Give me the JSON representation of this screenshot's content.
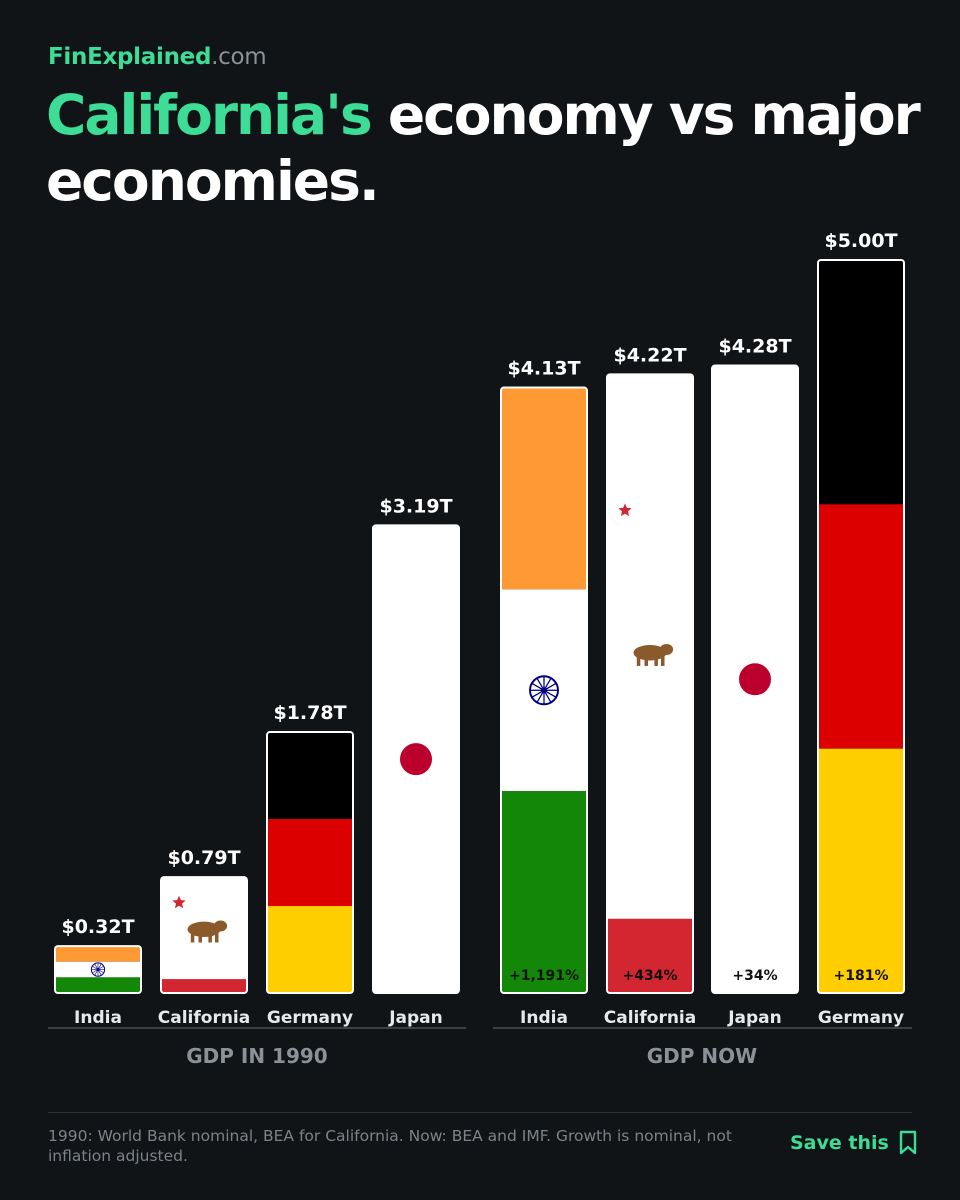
{
  "brand": {
    "name": "FinExplained",
    "domain": ".com"
  },
  "title": {
    "highlight": "California's",
    "rest": " economy vs major economies."
  },
  "footer": {
    "note": "1990: World Bank nominal, BEA for California. Now: BEA and IMF. Growth is nominal, not inflation adjusted.",
    "save_label": "Save this"
  },
  "chart_data": [
    {
      "type": "bar",
      "group_label": "GDP IN 1990",
      "unit": "T USD",
      "categories": [
        "India",
        "California",
        "Germany",
        "Japan"
      ],
      "values": [
        0.32,
        0.79,
        1.78,
        3.19
      ],
      "value_labels": [
        "$0.32T",
        "$0.79T",
        "$1.78T",
        "$3.19T"
      ],
      "growth_labels": [
        "",
        "",
        "",
        ""
      ],
      "flags": [
        "india",
        "california",
        "germany",
        "japan"
      ]
    },
    {
      "type": "bar",
      "group_label": "GDP NOW",
      "unit": "T USD",
      "categories": [
        "India",
        "California",
        "Japan",
        "Germany"
      ],
      "values": [
        4.13,
        4.22,
        4.28,
        5.0
      ],
      "value_labels": [
        "$4.13T",
        "$4.22T",
        "$4.28T",
        "$5.00T"
      ],
      "growth_labels": [
        "+1,191%",
        "+434%",
        "+34%",
        "+181%"
      ],
      "flags": [
        "india",
        "california",
        "japan",
        "germany"
      ]
    }
  ],
  "colors": {
    "accent": "#3ddc97",
    "background": "#111416",
    "india_saffron": "#ff9933",
    "india_green": "#138808",
    "india_chakra": "#000080",
    "germany_black": "#000000",
    "germany_red": "#dd0000",
    "germany_gold": "#ffce00",
    "japan_red": "#bc002d",
    "california_red": "#d22630",
    "california_bear": "#8b5a2b"
  }
}
